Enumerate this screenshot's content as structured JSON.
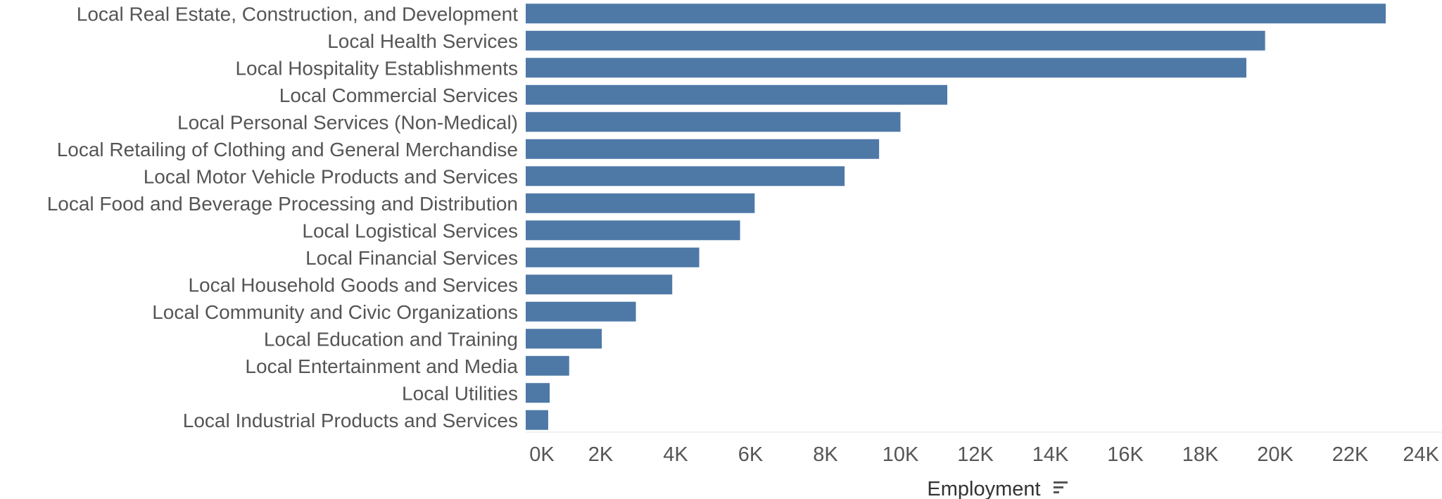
{
  "chart_data": {
    "type": "bar",
    "orientation": "horizontal",
    "categories": [
      "Local Real Estate, Construction, and Development",
      "Local Health Services",
      "Local Hospitality Establishments",
      "Local Commercial Services",
      "Local Personal Services (Non-Medical)",
      "Local Retailing of Clothing and General Merchandise",
      "Local Motor Vehicle Products and Services",
      "Local Food and Beverage Processing and Distribution",
      "Local Logistical Services",
      "Local Financial Services",
      "Local Household Goods and Services",
      "Local Community and Civic Organizations",
      "Local Education and Training",
      "Local Entertainment and Media",
      "Local Utilities",
      "Local Industrial Products and Services"
    ],
    "values": [
      22950,
      19730,
      19230,
      11250,
      10000,
      9430,
      8510,
      6110,
      5720,
      4630,
      3910,
      2940,
      2030,
      1160,
      640,
      600
    ],
    "xlabel": "Employment",
    "ylabel": "",
    "xlim": [
      0,
      24000
    ],
    "ticks": [
      0,
      2000,
      4000,
      6000,
      8000,
      10000,
      12000,
      14000,
      16000,
      18000,
      20000,
      22000,
      24000
    ],
    "tick_labels": [
      "0K",
      "2K",
      "4K",
      "6K",
      "8K",
      "10K",
      "12K",
      "14K",
      "16K",
      "18K",
      "20K",
      "22K",
      "24K"
    ],
    "grid": false,
    "legend": "none",
    "bar_color": "#4e79a7",
    "sort_icon": "sort-descending-icon"
  }
}
